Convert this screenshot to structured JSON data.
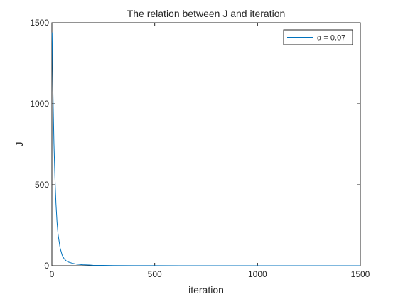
{
  "chart_data": {
    "type": "line",
    "title": "The relation between J and iteration",
    "xlabel": "iteration",
    "ylabel": "J",
    "xlim": [
      0,
      1500
    ],
    "ylim": [
      0,
      1500
    ],
    "xticks": [
      0,
      500,
      1000,
      1500
    ],
    "yticks": [
      0,
      500,
      1000,
      1500
    ],
    "grid": false,
    "legend_position": "top-right",
    "series": [
      {
        "name": "α = 0.07",
        "color": "#0072BD",
        "x": [
          1,
          5,
          10,
          15,
          20,
          25,
          30,
          40,
          50,
          60,
          70,
          80,
          100,
          120,
          150,
          200,
          250,
          300,
          400,
          500,
          700,
          1000,
          1500
        ],
        "y": [
          1440,
          1080,
          760,
          540,
          380,
          270,
          195,
          110,
          65,
          42,
          30,
          23,
          15,
          10,
          6,
          3,
          2,
          1,
          0.5,
          0.3,
          0.1,
          0.05,
          0.02
        ]
      }
    ]
  }
}
